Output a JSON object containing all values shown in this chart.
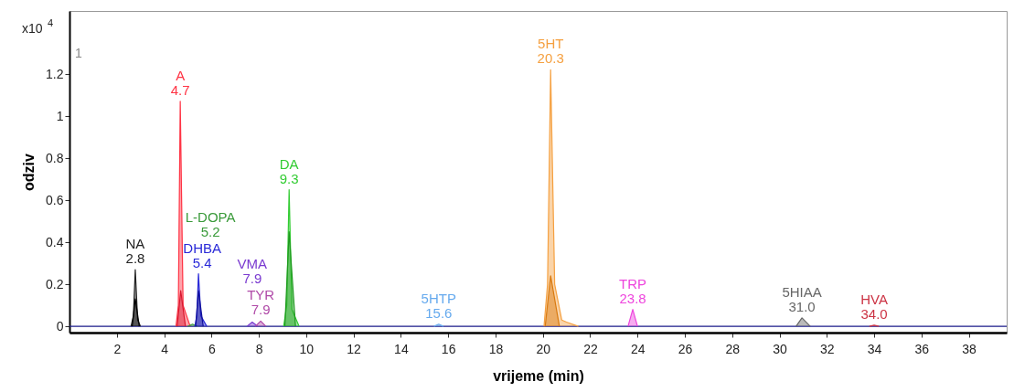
{
  "chart_data": {
    "type": "area",
    "xlabel": "vrijeme (min)",
    "ylabel": "odziv",
    "xlim": [
      0,
      39.6
    ],
    "ylim": [
      -0.03,
      1.5
    ],
    "xticks": [
      2,
      4,
      6,
      8,
      10,
      12,
      14,
      16,
      18,
      20,
      22,
      24,
      26,
      28,
      30,
      32,
      34,
      36,
      38
    ],
    "yticks": [
      0,
      0.2,
      0.4,
      0.6,
      0.8,
      1,
      1.2
    ],
    "series": [
      {
        "type": "line",
        "color": "#1a1a8a",
        "x": [
          0,
          39.6
        ],
        "values": [
          0,
          0
        ]
      },
      {
        "name": "NA",
        "color": "#222222",
        "x": [
          2.6,
          2.7,
          2.78,
          2.88,
          3.0
        ],
        "values": [
          0,
          0.05,
          0.27,
          0.03,
          0
        ]
      },
      {
        "name": "A",
        "color": "#ff3344",
        "x": [
          4.5,
          4.6,
          4.68,
          4.8,
          5.1
        ],
        "values": [
          0,
          0.1,
          1.07,
          0.1,
          0
        ]
      },
      {
        "name": "L-DOPA",
        "color": "#3a9a3a",
        "x": [
          5.0,
          5.2,
          5.4
        ],
        "values": [
          0,
          0.01,
          0
        ]
      },
      {
        "name": "DHBA",
        "color": "#2a2ad8",
        "x": [
          5.3,
          5.38,
          5.45,
          5.55,
          5.8
        ],
        "values": [
          0,
          0.05,
          0.25,
          0.05,
          0
        ]
      },
      {
        "name": "VMA",
        "color": "#7a3ad0",
        "x": [
          7.5,
          7.72,
          7.95
        ],
        "values": [
          0,
          0.02,
          0
        ]
      },
      {
        "name": "TYR",
        "color": "#b04aa8",
        "x": [
          7.85,
          8.08,
          8.3
        ],
        "values": [
          0,
          0.025,
          0
        ]
      },
      {
        "name": "DA",
        "color": "#33cc33",
        "x": [
          9.05,
          9.18,
          9.28,
          9.4,
          9.7
        ],
        "values": [
          0,
          0.1,
          0.65,
          0.08,
          0
        ]
      },
      {
        "name": "5HTP",
        "color": "#66aaee",
        "x": [
          15.4,
          15.6,
          15.8
        ],
        "values": [
          0,
          0.01,
          0
        ]
      },
      {
        "name": "5HT",
        "color": "#f5a040",
        "x": [
          20.05,
          20.2,
          20.33,
          20.5,
          20.8,
          21.0,
          21.5
        ],
        "values": [
          0,
          0.2,
          1.22,
          0.2,
          0.03,
          0.02,
          0
        ]
      },
      {
        "name": "TRP",
        "color": "#ee44dd",
        "x": [
          23.6,
          23.8,
          24.0
        ],
        "values": [
          0,
          0.08,
          0
        ]
      },
      {
        "name": "5HIAA",
        "color": "#666666",
        "x": [
          30.7,
          30.95,
          31.3
        ],
        "values": [
          0,
          0.04,
          0
        ]
      },
      {
        "name": "HVA",
        "color": "#cc3344",
        "x": [
          33.8,
          34.0,
          34.2
        ],
        "values": [
          0,
          0.005,
          0
        ]
      },
      {
        "color": "#000000",
        "x": [
          2.65,
          2.78,
          2.95
        ],
        "values": [
          0,
          0.13,
          0
        ]
      },
      {
        "color": "#d81830",
        "x": [
          4.55,
          4.7,
          4.9
        ],
        "values": [
          0,
          0.17,
          0
        ]
      },
      {
        "color": "#10109a",
        "x": [
          5.33,
          5.45,
          5.65
        ],
        "values": [
          0,
          0.17,
          0
        ]
      },
      {
        "color": "#1f9a1f",
        "x": [
          9.1,
          9.28,
          9.55
        ],
        "values": [
          0,
          0.45,
          0
        ]
      },
      {
        "color": "#d97a10",
        "x": [
          20.1,
          20.33,
          20.7
        ],
        "values": [
          0,
          0.24,
          0
        ]
      }
    ],
    "annotations": [
      "x10$^{4}$",
      "1",
      {
        "text": "2.8",
        "x": 2.78,
        "y": 0.27
      },
      {
        "text": "4.7",
        "x": 4.68,
        "y": 1.07
      },
      "5.2",
      {
        "text": "5.4",
        "x": 5.45,
        "y": 0.25
      },
      {
        "text": "7.9",
        "x": 7.72,
        "y": 0.02
      },
      {
        "text": "7.9",
        "x": 8.08,
        "y": 0.025
      },
      {
        "text": "9.3",
        "x": 9.28,
        "y": 0.65
      },
      {
        "text": "15.6",
        "x": 15.6,
        "y": 0.01
      },
      {
        "text": "20.3",
        "x": 20.33,
        "y": 1.22
      },
      {
        "text": "23.8",
        "x": 23.8,
        "y": 0.08
      },
      {
        "text": "31.0",
        "x": 30.95,
        "y": 0.04
      },
      {
        "text": "34.0",
        "x": 34.0,
        "y": 0.005
      }
    ]
  }
}
